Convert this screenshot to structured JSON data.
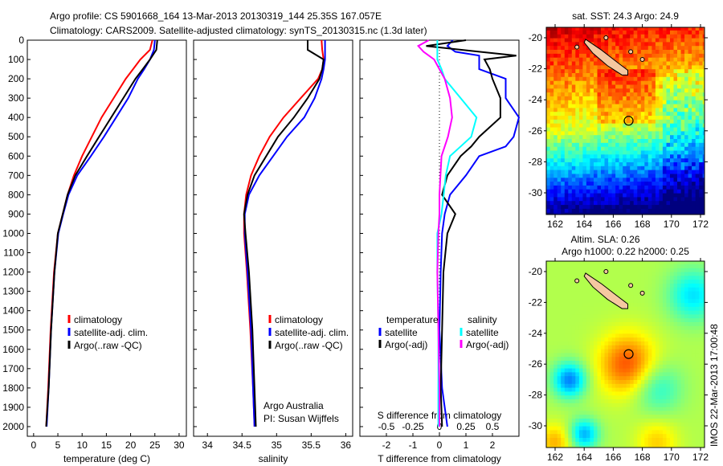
{
  "title_line1": "Argo profile: CS 5901668_164 13-Mar-2013 20130319_144 25.35S 167.057E",
  "title_line2": "Climatology: CARS2009. Satellite-adjusted climatology: synTS_20130315.nc (1.3d later)",
  "colors": {
    "climatology": "#ff0000",
    "satellite": "#0000ff",
    "argo": "#000000",
    "s_satellite": "#00ffff",
    "s_argo": "#ff00ff"
  },
  "chart_data": [
    {
      "type": "line",
      "name": "temperature",
      "xlabel": "temperature (deg C)",
      "ylabel": "",
      "xlim": [
        -1.3,
        31.5
      ],
      "ylim": [
        2050,
        0
      ],
      "xticks": [
        0,
        5,
        10,
        15,
        20,
        25,
        30
      ],
      "yticks": [
        0,
        100,
        200,
        300,
        400,
        500,
        600,
        700,
        800,
        900,
        1000,
        1100,
        1200,
        1300,
        1400,
        1500,
        1600,
        1700,
        1800,
        1900,
        2000
      ],
      "depth": [
        0,
        50,
        100,
        150,
        200,
        300,
        400,
        500,
        600,
        700,
        800,
        900,
        1000,
        1200,
        1500,
        1800,
        2000
      ],
      "legend": [
        "climatology",
        "satellite-adj. clim.",
        "Argo(..raw -QC)"
      ],
      "series": [
        {
          "name": "climatology",
          "color": "#ff0000",
          "values": [
            24.5,
            24,
            22,
            20.5,
            19,
            16.5,
            14,
            12,
            10,
            8.3,
            7,
            6,
            5,
            4.2,
            3.5,
            3,
            2.6
          ]
        },
        {
          "name": "satellite-adj. clim.",
          "color": "#0000ff",
          "values": [
            25,
            24.8,
            24,
            22.8,
            21.5,
            19.5,
            17,
            14.5,
            11.8,
            9,
            7.2,
            6.1,
            5.1,
            4.3,
            3.6,
            3.1,
            2.7
          ]
        },
        {
          "name": "Argo(..raw -QC)",
          "color": "#000000",
          "values": [
            25.5,
            25.3,
            24,
            22.5,
            21,
            18.5,
            16,
            13.5,
            11,
            8.6,
            7,
            6,
            5,
            4.3,
            3.6,
            3.1,
            2.6
          ]
        }
      ]
    },
    {
      "type": "line",
      "name": "salinity",
      "xlabel": "salinity",
      "xlim": [
        33.8,
        36.1
      ],
      "ylim": [
        2050,
        0
      ],
      "xticks": [
        34,
        34.5,
        35,
        35.5,
        36
      ],
      "depth": [
        0,
        50,
        100,
        150,
        200,
        300,
        400,
        500,
        600,
        700,
        800,
        900,
        1000,
        1200,
        1500,
        1800,
        2000
      ],
      "legend": [
        "climatology",
        "satellite-adj. clim.",
        "Argo(..raw -QC)"
      ],
      "annotation": [
        "Argo Australia",
        "PI: Susan Wijffels"
      ],
      "series": [
        {
          "name": "climatology",
          "color": "#ff0000",
          "values": [
            35.65,
            35.66,
            35.68,
            35.66,
            35.6,
            35.35,
            35.1,
            34.9,
            34.75,
            34.63,
            34.56,
            34.53,
            34.53,
            34.57,
            34.62,
            34.66,
            34.68
          ]
        },
        {
          "name": "satellite-adj. clim.",
          "color": "#0000ff",
          "values": [
            35.7,
            35.7,
            35.7,
            35.68,
            35.65,
            35.55,
            35.4,
            35.15,
            34.95,
            34.75,
            34.6,
            34.54,
            34.54,
            34.58,
            34.63,
            34.66,
            34.68
          ]
        },
        {
          "name": "Argo(..raw -QC)",
          "color": "#000000",
          "values": [
            35.45,
            35.45,
            35.68,
            35.66,
            35.62,
            35.45,
            35.25,
            35.02,
            34.85,
            34.68,
            34.58,
            34.53,
            34.55,
            34.6,
            34.65,
            34.68,
            34.7
          ]
        }
      ]
    },
    {
      "type": "line",
      "name": "differences",
      "xlabel": "T difference from climatology",
      "x2label": "S difference from climatology",
      "xlim": [
        -3,
        3
      ],
      "ylim": [
        2050,
        0
      ],
      "xticks": [
        -2,
        -1,
        0,
        1,
        2
      ],
      "x2lim": [
        -0.75,
        0.75
      ],
      "x2ticks": [
        -0.5,
        -0.25,
        0,
        0.25,
        0.5
      ],
      "x2ticklabels": [
        "-0.5",
        "-0.25",
        "0",
        "0.25",
        "0.5"
      ],
      "legend_headers": [
        "temperature",
        "salinity"
      ],
      "legend": [
        "satellite",
        "Argo(-adj)",
        "satellite",
        "Argo(-adj)"
      ],
      "depth": [
        0,
        30,
        60,
        80,
        100,
        150,
        200,
        300,
        400,
        500,
        550,
        600,
        700,
        800,
        900,
        1000,
        1200,
        1500,
        1800,
        2000
      ],
      "series": [
        {
          "name": "T satellite",
          "axis": "T",
          "color": "#0000ff",
          "values": [
            0.5,
            0.3,
            0.6,
            1.5,
            1.5,
            1.5,
            2.5,
            2.5,
            3,
            2.8,
            2.5,
            1.5,
            1,
            0.4,
            0.2,
            0.1,
            0.05,
            0,
            0.1,
            0.3
          ]
        },
        {
          "name": "T Argo(-adj)",
          "axis": "T",
          "color": "#000000",
          "values": [
            1,
            -0.5,
            1.5,
            2.9,
            1.7,
            1.9,
            2,
            2.3,
            2.3,
            1.5,
            1.2,
            0.8,
            0.3,
            0.1,
            0.6,
            0.3,
            0.15,
            0.1,
            0.05,
            0.1
          ]
        },
        {
          "name": "S satellite",
          "axis": "S",
          "color": "#00ffff",
          "values": [
            -0.02,
            -0.02,
            -0.02,
            -0.02,
            -0.02,
            0.02,
            0.05,
            0.2,
            0.35,
            0.3,
            0.2,
            0.1,
            0.06,
            0.04,
            0.02,
            -0.02,
            -0.02,
            -0.01,
            -0.01,
            -0.01
          ]
        },
        {
          "name": "S Argo(-adj)",
          "axis": "S",
          "color": "#ff00ff",
          "values": [
            -0.1,
            -0.2,
            -0.15,
            -0.1,
            -0.05,
            0,
            0.05,
            0.1,
            0.12,
            0.08,
            0.05,
            0.02,
            0.01,
            0,
            0,
            -0.01,
            -0.02,
            -0.01,
            0,
            0
          ]
        }
      ]
    },
    {
      "type": "heatmap",
      "name": "sst-map",
      "title": "sat. SST: 24.3 Argo: 24.9",
      "xlim": [
        161.4,
        172.7
      ],
      "ylim": [
        -31.5,
        -19.3
      ],
      "xticks": [
        162,
        164,
        166,
        168,
        170,
        172
      ],
      "yticks": [
        -20,
        -22,
        -24,
        -26,
        -28,
        -30
      ],
      "profile_location": [
        167.057,
        -25.35
      ]
    },
    {
      "type": "heatmap",
      "name": "sla-map",
      "title": "Altim. SLA: 0.26",
      "subtitle": "Argo h1000: 0.22 h2000: 0.25",
      "xlim": [
        161.4,
        172.7
      ],
      "ylim": [
        -31.5,
        -19.3
      ],
      "xticks": [
        162,
        164,
        166,
        168,
        170,
        172
      ],
      "yticks": [
        -20,
        -22,
        -24,
        -26,
        -28,
        -30
      ],
      "profile_location": [
        167.057,
        -25.35
      ]
    }
  ],
  "footer_stamp": "IMOS 22-Mar-2013 17:00:48"
}
